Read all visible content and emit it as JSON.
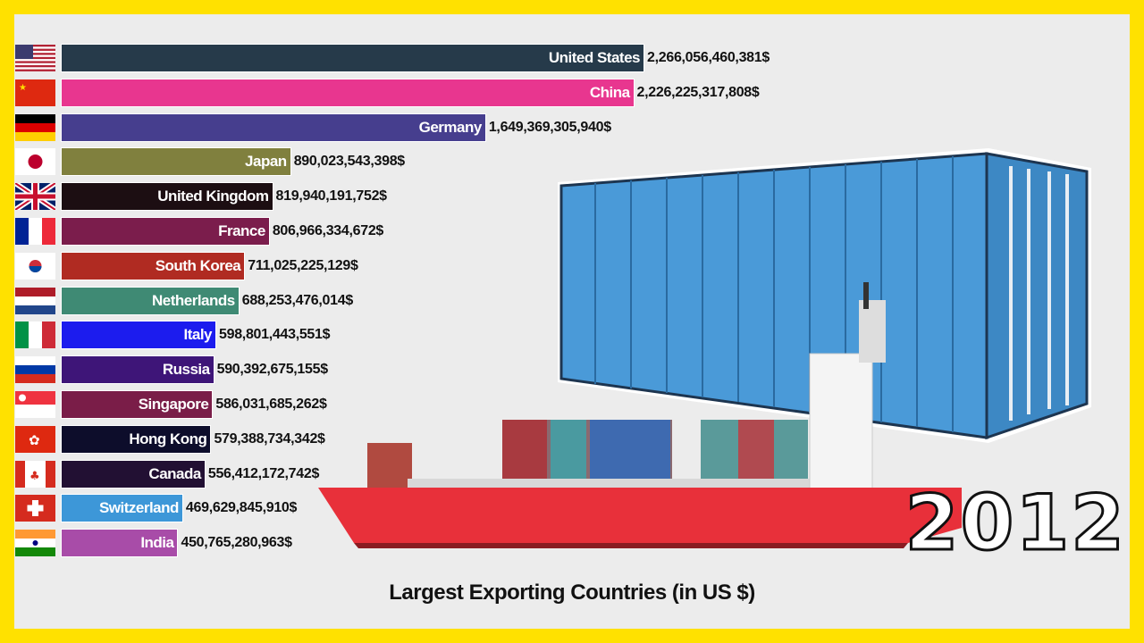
{
  "chart_data": {
    "type": "bar",
    "orientation": "horizontal",
    "title": "Largest Exporting Countries (in US $)",
    "year": "2012",
    "value_suffix": "$",
    "xlim": [
      0,
      2266056460381
    ],
    "categories": [
      "United States",
      "China",
      "Germany",
      "Japan",
      "United Kingdom",
      "France",
      "South Korea",
      "Netherlands",
      "Italy",
      "Russia",
      "Singapore",
      "Hong Kong",
      "Canada",
      "Switzerland",
      "India"
    ],
    "values": [
      2266056460381,
      2226225317808,
      1649369305940,
      890023543398,
      819940191752,
      806966334672,
      711025225129,
      688253476014,
      598801443551,
      590392675155,
      586031685262,
      579388734342,
      556412172742,
      469629845910,
      450765280963
    ],
    "value_labels": [
      "2,266,056,460,381$",
      "2,226,225,317,808$",
      "1,649,369,305,940$",
      "890,023,543,398$",
      "819,940,191,752$",
      "806,966,334,672$",
      "711,025,225,129$",
      "688,253,476,014$",
      "598,801,443,551$",
      "590,392,675,155$",
      "586,031,685,262$",
      "579,388,734,342$",
      "556,412,172,742$",
      "469,629,845,910$",
      "450,765,280,963$"
    ],
    "colors": [
      "#263a4a",
      "#e8368f",
      "#463e8e",
      "#80803e",
      "#1c0e12",
      "#7b1d4c",
      "#b02b22",
      "#3f8a74",
      "#1c1cee",
      "#3e1578",
      "#7a1d48",
      "#0d0d2b",
      "#221033",
      "#3d97d8",
      "#a84ca8"
    ],
    "flags": [
      "us-flag-icon",
      "china-flag-icon",
      "germany-flag-icon",
      "japan-flag-icon",
      "uk-flag-icon",
      "france-flag-icon",
      "south-korea-flag-icon",
      "netherlands-flag-icon",
      "italy-flag-icon",
      "russia-flag-icon",
      "singapore-flag-icon",
      "hong-kong-flag-icon",
      "canada-flag-icon",
      "switzerland-flag-icon",
      "india-flag-icon"
    ],
    "grid": false,
    "legend": "none"
  }
}
